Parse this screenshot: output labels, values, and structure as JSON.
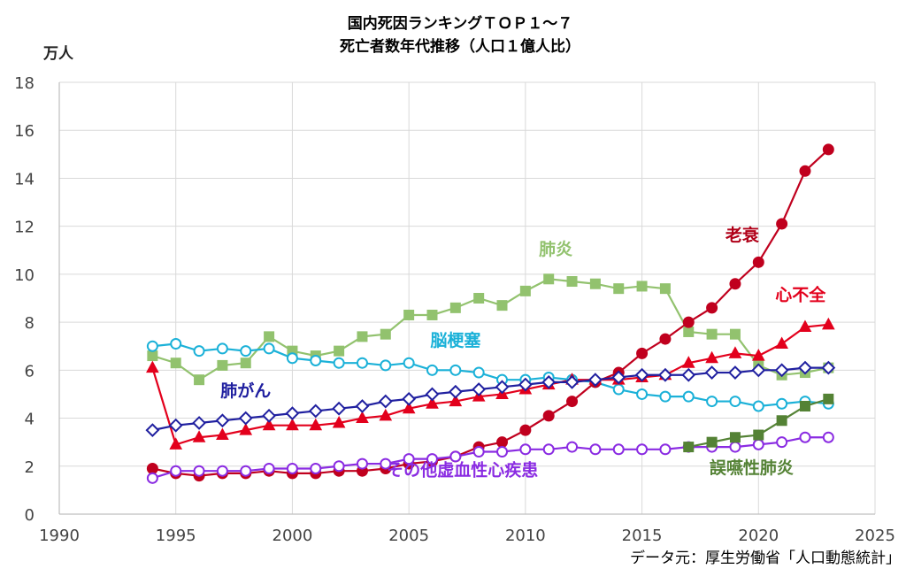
{
  "chart_data": {
    "type": "line",
    "title": [
      "国内死因ランキングＴＯＰ１～７",
      "死亡者数年代推移（人口１億人比）"
    ],
    "ylabel": "万人",
    "xlim": [
      1990,
      2025
    ],
    "ylim": [
      0,
      18
    ],
    "x_ticks": [
      "1990",
      "1995",
      "2000",
      "2005",
      "2010",
      "2015",
      "2020",
      "2025"
    ],
    "y_ticks": [
      "0",
      "2",
      "4",
      "6",
      "8",
      "10",
      "12",
      "14",
      "16",
      "18"
    ],
    "grid": true,
    "source": "データ元：厚生労働省「人口動態統計」",
    "series": [
      {
        "name": "肺炎",
        "color": "#92c26e",
        "marker": "square",
        "filled": true,
        "x": [
          1994,
          1995,
          1996,
          1997,
          1998,
          1999,
          2000,
          2001,
          2002,
          2003,
          2004,
          2005,
          2006,
          2007,
          2008,
          2009,
          2010,
          2011,
          2012,
          2013,
          2014,
          2015,
          2016,
          2017,
          2018,
          2019,
          2020,
          2021,
          2022,
          2023
        ],
        "values": [
          6.6,
          6.3,
          5.6,
          6.2,
          6.3,
          7.4,
          6.8,
          6.6,
          6.8,
          7.4,
          7.5,
          8.3,
          8.3,
          8.6,
          9.0,
          8.7,
          9.3,
          9.8,
          9.7,
          9.6,
          9.4,
          9.5,
          9.4,
          7.6,
          7.5,
          7.5,
          6.2,
          5.8,
          5.9,
          6.1
        ]
      },
      {
        "name": "脳梗塞",
        "color": "#1bb1d8",
        "marker": "circle",
        "filled": false,
        "x": [
          1994,
          1995,
          1996,
          1997,
          1998,
          1999,
          2000,
          2001,
          2002,
          2003,
          2004,
          2005,
          2006,
          2007,
          2008,
          2009,
          2010,
          2011,
          2012,
          2013,
          2014,
          2015,
          2016,
          2017,
          2018,
          2019,
          2020,
          2021,
          2022,
          2023
        ],
        "values": [
          7.0,
          7.1,
          6.8,
          6.9,
          6.8,
          6.9,
          6.5,
          6.4,
          6.3,
          6.3,
          6.2,
          6.3,
          6.0,
          6.0,
          5.9,
          5.6,
          5.6,
          5.7,
          5.6,
          5.5,
          5.2,
          5.0,
          4.9,
          4.9,
          4.7,
          4.7,
          4.5,
          4.6,
          4.7,
          4.6
        ]
      },
      {
        "name": "老衰",
        "color": "#c0001e",
        "marker": "circle",
        "filled": true,
        "x": [
          1994,
          1995,
          1996,
          1997,
          1998,
          1999,
          2000,
          2001,
          2002,
          2003,
          2004,
          2005,
          2006,
          2007,
          2008,
          2009,
          2010,
          2011,
          2012,
          2013,
          2014,
          2015,
          2016,
          2017,
          2018,
          2019,
          2020,
          2021,
          2022,
          2023
        ],
        "values": [
          1.9,
          1.7,
          1.6,
          1.7,
          1.7,
          1.8,
          1.7,
          1.7,
          1.8,
          1.8,
          1.9,
          2.1,
          2.2,
          2.4,
          2.8,
          3.0,
          3.5,
          4.1,
          4.7,
          5.5,
          5.9,
          6.7,
          7.3,
          8.0,
          8.6,
          9.6,
          10.5,
          12.1,
          14.3,
          15.2
        ]
      },
      {
        "name": "心不全",
        "color": "#e3001c",
        "marker": "triangle",
        "filled": true,
        "x": [
          1994,
          1995,
          1996,
          1997,
          1998,
          1999,
          2000,
          2001,
          2002,
          2003,
          2004,
          2005,
          2006,
          2007,
          2008,
          2009,
          2010,
          2011,
          2012,
          2013,
          2014,
          2015,
          2016,
          2017,
          2018,
          2019,
          2020,
          2021,
          2022,
          2023
        ],
        "values": [
          6.1,
          2.9,
          3.2,
          3.3,
          3.5,
          3.7,
          3.7,
          3.7,
          3.8,
          4.0,
          4.1,
          4.4,
          4.6,
          4.7,
          4.9,
          5.0,
          5.2,
          5.4,
          5.6,
          5.6,
          5.6,
          5.7,
          5.8,
          6.3,
          6.5,
          6.7,
          6.6,
          7.1,
          7.8,
          7.9
        ]
      },
      {
        "name": "肺がん",
        "color": "#2020a0",
        "marker": "diamond",
        "filled": false,
        "x": [
          1994,
          1995,
          1996,
          1997,
          1998,
          1999,
          2000,
          2001,
          2002,
          2003,
          2004,
          2005,
          2006,
          2007,
          2008,
          2009,
          2010,
          2011,
          2012,
          2013,
          2014,
          2015,
          2016,
          2017,
          2018,
          2019,
          2020,
          2021,
          2022,
          2023
        ],
        "values": [
          3.5,
          3.7,
          3.8,
          3.9,
          4.0,
          4.1,
          4.2,
          4.3,
          4.4,
          4.5,
          4.7,
          4.8,
          5.0,
          5.1,
          5.2,
          5.3,
          5.4,
          5.5,
          5.5,
          5.6,
          5.7,
          5.8,
          5.8,
          5.8,
          5.9,
          5.9,
          6.0,
          6.0,
          6.1,
          6.1
        ]
      },
      {
        "name": "その他虚血性心疾患",
        "color": "#8a2be2",
        "marker": "circle",
        "filled": false,
        "x": [
          1994,
          1995,
          1996,
          1997,
          1998,
          1999,
          2000,
          2001,
          2002,
          2003,
          2004,
          2005,
          2006,
          2007,
          2008,
          2009,
          2010,
          2011,
          2012,
          2013,
          2014,
          2015,
          2016,
          2017,
          2018,
          2019,
          2020,
          2021,
          2022,
          2023
        ],
        "values": [
          1.5,
          1.8,
          1.8,
          1.8,
          1.8,
          1.9,
          1.9,
          1.9,
          2.0,
          2.1,
          2.1,
          2.3,
          2.3,
          2.4,
          2.6,
          2.6,
          2.7,
          2.7,
          2.8,
          2.7,
          2.7,
          2.7,
          2.7,
          2.8,
          2.8,
          2.8,
          2.9,
          3.0,
          3.2,
          3.2
        ]
      },
      {
        "name": "誤嚥性肺炎",
        "color": "#548235",
        "marker": "square",
        "filled": true,
        "x": [
          2017,
          2018,
          2019,
          2020,
          2021,
          2022,
          2023
        ],
        "values": [
          2.8,
          3.0,
          3.2,
          3.3,
          3.9,
          4.5,
          4.8
        ]
      }
    ],
    "annotations": [
      {
        "text": "肺炎",
        "color": "#92c26e",
        "x": 2011.3,
        "y": 10.8
      },
      {
        "text": "脳梗塞",
        "color": "#1bb1d8",
        "x": 2007.0,
        "y": 7.0
      },
      {
        "text": "老衰",
        "color": "#b00018",
        "x": 2019.3,
        "y": 11.4
      },
      {
        "text": "心不全",
        "color": "#e3001c",
        "x": 2021.8,
        "y": 8.9
      },
      {
        "text": "肺がん",
        "color": "#2020a0",
        "x": 1998.0,
        "y": 4.9
      },
      {
        "text": "その他虚血性心疾患",
        "color": "#8a2be2",
        "x": 2007.3,
        "y": 1.6
      },
      {
        "text": "誤嚥性肺炎",
        "color": "#548235",
        "x": 2019.7,
        "y": 1.7
      }
    ]
  }
}
